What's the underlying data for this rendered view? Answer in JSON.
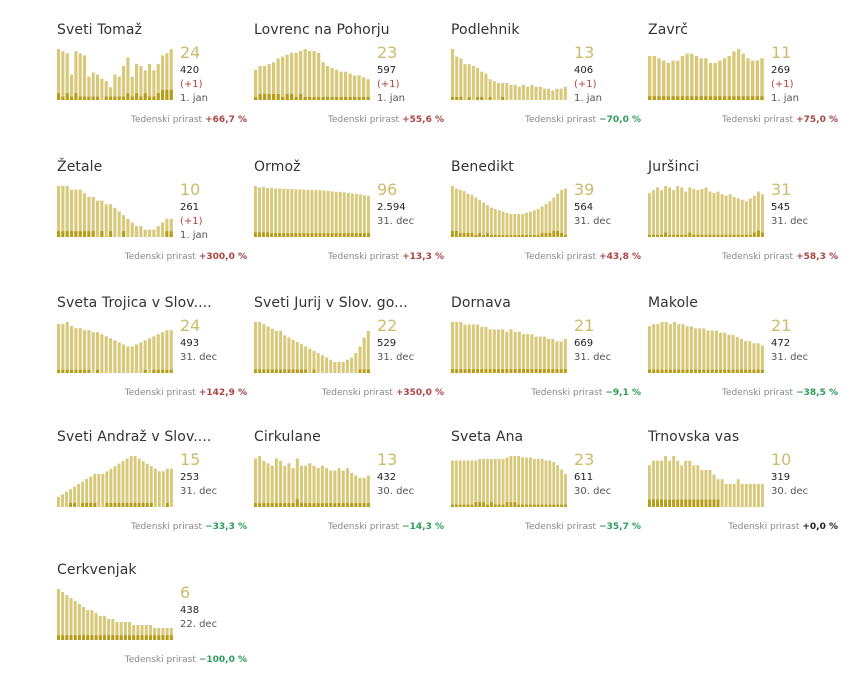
{
  "growth_label": "Tedenski prirast",
  "colors": {
    "accent": "#cdbb6c",
    "bar": "#d8c87a",
    "bar_dark": "#b69d19",
    "up": "#a94442",
    "down": "#2c9c5a"
  },
  "chart_data": [
    {
      "type": "bar",
      "name": "Sveti Tomaž",
      "active": "24",
      "total": "420",
      "delta": "(+1)",
      "date": "1. jan",
      "growth": "+66,7 %",
      "trend": "up",
      "values": [
        24,
        23,
        22,
        12,
        23,
        22,
        21,
        11,
        13,
        12,
        10,
        9,
        6,
        12,
        11,
        16,
        20,
        11,
        17,
        16,
        14,
        17,
        14,
        17,
        21,
        22,
        24
      ],
      "new_values": [
        2,
        1,
        2,
        1,
        2,
        1,
        1,
        1,
        1,
        1,
        0,
        1,
        1,
        1,
        1,
        1,
        2,
        1,
        2,
        1,
        2,
        1,
        1,
        2,
        3,
        3,
        3
      ]
    },
    {
      "type": "bar",
      "name": "Lovrenc na Pohorju",
      "active": "23",
      "total": "597",
      "delta": "(+1)",
      "date": "1. jan",
      "growth": "+55,6 %",
      "trend": "up",
      "values": [
        16,
        18,
        18,
        19,
        20,
        22,
        23,
        24,
        25,
        25,
        26,
        27,
        26,
        26,
        25,
        20,
        18,
        17,
        16,
        15,
        15,
        14,
        13,
        13,
        12,
        11
      ],
      "new_values": [
        1,
        2,
        2,
        2,
        2,
        2,
        1,
        2,
        2,
        1,
        2,
        1,
        1,
        1,
        1,
        1,
        1,
        1,
        1,
        1,
        1,
        1,
        1,
        1,
        1,
        1
      ]
    },
    {
      "type": "bar",
      "name": "Podlehnik",
      "active": "13",
      "total": "406",
      "delta": "(+1)",
      "date": "1. jan",
      "growth": "−70,0 %",
      "trend": "down",
      "values": [
        27,
        23,
        22,
        19,
        19,
        18,
        17,
        15,
        14,
        11,
        10,
        9,
        9,
        9,
        8,
        8,
        7,
        8,
        7,
        8,
        7,
        7,
        6,
        6,
        5,
        6,
        6,
        7
      ],
      "new_values": [
        1,
        1,
        1,
        0,
        1,
        0,
        1,
        1,
        0,
        1,
        0,
        0,
        1,
        0,
        0,
        0,
        0,
        0,
        0,
        0,
        0,
        0,
        0,
        0,
        0,
        0,
        0,
        0
      ]
    },
    {
      "type": "bar",
      "name": "Zavrč",
      "active": "11",
      "total": "269",
      "delta": "(+1)",
      "date": "1. jan",
      "growth": "+75,0 %",
      "trend": "up",
      "values": [
        19,
        19,
        18,
        17,
        16,
        17,
        17,
        19,
        20,
        20,
        19,
        18,
        18,
        16,
        16,
        17,
        18,
        19,
        21,
        22,
        20,
        18,
        17,
        17,
        18
      ],
      "new_values": [
        1,
        1,
        1,
        1,
        1,
        1,
        1,
        1,
        1,
        1,
        1,
        1,
        1,
        1,
        1,
        1,
        1,
        1,
        1,
        1,
        1,
        1,
        1,
        1,
        1
      ]
    },
    {
      "type": "bar",
      "name": "Žetale",
      "active": "10",
      "total": "261",
      "delta": "(+1)",
      "date": "1. jan",
      "growth": "+300,0 %",
      "trend": "up",
      "values": [
        14,
        14,
        14,
        13,
        13,
        13,
        12,
        11,
        11,
        10,
        10,
        9,
        9,
        8,
        7,
        6,
        5,
        4,
        3,
        3,
        2,
        2,
        2,
        3,
        4,
        5,
        5
      ],
      "new_values": [
        1,
        1,
        1,
        1,
        1,
        1,
        1,
        1,
        1,
        0,
        1,
        0,
        1,
        0,
        0,
        1,
        0,
        0,
        0,
        0,
        0,
        0,
        0,
        0,
        0,
        1,
        1
      ]
    },
    {
      "type": "bar",
      "name": "Ormož",
      "active": "96",
      "total": "2.594",
      "delta": "",
      "date": "31. dec",
      "growth": "+13,3 %",
      "trend": "up",
      "values": [
        105,
        102,
        103,
        101,
        101,
        100,
        100,
        99,
        99,
        99,
        98,
        98,
        98,
        97,
        97,
        97,
        96,
        96,
        95,
        94,
        93,
        93,
        92,
        91,
        90,
        89,
        88,
        86,
        85
      ],
      "new_values": [
        6,
        6,
        6,
        6,
        5,
        5,
        5,
        5,
        5,
        5,
        5,
        5,
        5,
        5,
        5,
        5,
        5,
        5,
        5,
        5,
        5,
        5,
        5,
        5,
        5,
        5,
        5,
        5,
        5
      ]
    },
    {
      "type": "bar",
      "name": "Benedikt",
      "active": "39",
      "total": "564",
      "delta": "",
      "date": "31. dec",
      "growth": "+43,8 %",
      "trend": "up",
      "values": [
        40,
        38,
        37,
        36,
        34,
        33,
        31,
        29,
        27,
        25,
        23,
        22,
        21,
        20,
        19,
        18,
        18,
        18,
        18,
        19,
        20,
        21,
        22,
        24,
        26,
        28,
        31,
        34,
        37,
        38
      ],
      "new_values": [
        3,
        3,
        2,
        2,
        2,
        2,
        1,
        2,
        1,
        2,
        1,
        1,
        1,
        1,
        1,
        1,
        1,
        1,
        1,
        1,
        1,
        1,
        1,
        2,
        2,
        2,
        3,
        3,
        2,
        1
      ]
    },
    {
      "type": "bar",
      "name": "Juršinci",
      "active": "31",
      "total": "545",
      "delta": "",
      "date": "31. dec",
      "growth": "+58,3 %",
      "trend": "up",
      "values": [
        32,
        34,
        36,
        34,
        37,
        36,
        34,
        37,
        36,
        33,
        36,
        35,
        34,
        35,
        36,
        33,
        32,
        33,
        31,
        30,
        31,
        29,
        28,
        27,
        26,
        28,
        30,
        33,
        31
      ],
      "new_values": [
        1,
        1,
        1,
        1,
        2,
        1,
        1,
        1,
        1,
        1,
        2,
        1,
        1,
        1,
        1,
        1,
        1,
        1,
        1,
        1,
        1,
        1,
        1,
        1,
        1,
        1,
        2,
        3,
        2
      ]
    },
    {
      "type": "bar",
      "name": "Sveta Trojica v Slov....",
      "active": "24",
      "total": "493",
      "delta": "",
      "date": "31. dec",
      "growth": "+142,9 %",
      "trend": "up",
      "values": [
        24,
        24,
        25,
        23,
        22,
        22,
        21,
        21,
        20,
        20,
        19,
        18,
        17,
        16,
        15,
        14,
        13,
        13,
        14,
        15,
        16,
        17,
        18,
        19,
        20,
        21,
        21
      ],
      "new_values": [
        1,
        1,
        1,
        1,
        1,
        1,
        1,
        1,
        0,
        1,
        0,
        0,
        0,
        0,
        0,
        0,
        0,
        0,
        0,
        0,
        1,
        0,
        1,
        1,
        1,
        1,
        1
      ]
    },
    {
      "type": "bar",
      "name": "Sveti Jurij v Slov. go...",
      "active": "22",
      "total": "529",
      "delta": "",
      "date": "31. dec",
      "growth": "+350,0 %",
      "trend": "up",
      "values": [
        23,
        23,
        22,
        21,
        20,
        19,
        19,
        17,
        16,
        15,
        14,
        13,
        12,
        11,
        10,
        9,
        8,
        7,
        6,
        5,
        5,
        5,
        6,
        7,
        9,
        12,
        16,
        19
      ],
      "new_values": [
        1,
        1,
        1,
        1,
        1,
        1,
        1,
        1,
        1,
        1,
        1,
        1,
        1,
        0,
        1,
        0,
        0,
        0,
        0,
        0,
        0,
        0,
        0,
        0,
        0,
        1,
        1,
        1
      ]
    },
    {
      "type": "bar",
      "name": "Dornava",
      "active": "21",
      "total": "669",
      "delta": "",
      "date": "31. dec",
      "growth": "−9,1 %",
      "trend": "down",
      "values": [
        21,
        21,
        21,
        20,
        20,
        20,
        20,
        19,
        19,
        18,
        18,
        18,
        18,
        17,
        18,
        17,
        17,
        16,
        16,
        16,
        15,
        15,
        15,
        14,
        14,
        13,
        13,
        14
      ],
      "new_values": [
        1,
        1,
        1,
        1,
        1,
        1,
        1,
        1,
        1,
        1,
        1,
        1,
        1,
        1,
        1,
        1,
        1,
        1,
        1,
        1,
        1,
        1,
        1,
        1,
        1,
        1,
        1,
        1
      ]
    },
    {
      "type": "bar",
      "name": "Makole",
      "active": "21",
      "total": "472",
      "delta": "",
      "date": "31. dec",
      "growth": "−38,5 %",
      "trend": "down",
      "values": [
        22,
        23,
        23,
        24,
        24,
        23,
        24,
        23,
        23,
        22,
        22,
        21,
        21,
        21,
        20,
        20,
        20,
        19,
        19,
        18,
        18,
        17,
        16,
        15,
        15,
        14,
        14,
        13
      ],
      "new_values": [
        1,
        1,
        1,
        1,
        1,
        1,
        1,
        1,
        1,
        1,
        1,
        1,
        1,
        1,
        1,
        1,
        1,
        1,
        1,
        1,
        1,
        1,
        1,
        1,
        1,
        1,
        1,
        1
      ]
    },
    {
      "type": "bar",
      "name": "Sveti Andraž v Slov....",
      "active": "15",
      "total": "253",
      "delta": "",
      "date": "31. dec",
      "growth": "−33,3 %",
      "trend": "down",
      "values": [
        4,
        5,
        6,
        7,
        8,
        9,
        10,
        11,
        12,
        13,
        13,
        13,
        14,
        15,
        16,
        17,
        18,
        19,
        20,
        20,
        19,
        18,
        17,
        16,
        15,
        14,
        14,
        15,
        15
      ],
      "new_values": [
        0,
        0,
        0,
        1,
        1,
        0,
        1,
        1,
        1,
        1,
        0,
        0,
        1,
        1,
        1,
        1,
        1,
        1,
        1,
        1,
        1,
        1,
        1,
        1,
        0,
        0,
        0,
        1,
        0
      ]
    },
    {
      "type": "bar",
      "name": "Cirkulane",
      "active": "13",
      "total": "432",
      "delta": "",
      "date": "30. dec",
      "growth": "−14,3 %",
      "trend": "down",
      "values": [
        20,
        21,
        19,
        18,
        17,
        20,
        19,
        17,
        18,
        16,
        20,
        17,
        17,
        18,
        17,
        16,
        17,
        16,
        15,
        15,
        16,
        15,
        16,
        14,
        13,
        12,
        12,
        13
      ],
      "new_values": [
        1,
        1,
        1,
        1,
        1,
        1,
        1,
        1,
        1,
        1,
        2,
        1,
        1,
        1,
        1,
        1,
        1,
        1,
        1,
        1,
        1,
        1,
        1,
        1,
        1,
        1,
        1,
        1
      ]
    },
    {
      "type": "bar",
      "name": "Sveta Ana",
      "active": "23",
      "total": "611",
      "delta": "",
      "date": "30. dec",
      "growth": "−35,7 %",
      "trend": "down",
      "values": [
        31,
        31,
        31,
        31,
        31,
        31,
        31,
        32,
        32,
        32,
        32,
        32,
        32,
        32,
        33,
        34,
        34,
        34,
        33,
        33,
        33,
        32,
        32,
        32,
        31,
        31,
        30,
        28,
        25,
        22
      ],
      "new_values": [
        1,
        1,
        1,
        1,
        1,
        1,
        2,
        2,
        2,
        1,
        2,
        1,
        1,
        1,
        2,
        2,
        2,
        1,
        1,
        1,
        1,
        1,
        1,
        1,
        1,
        1,
        1,
        1,
        1,
        1
      ]
    },
    {
      "type": "bar",
      "name": "Trnovska vas",
      "active": "10",
      "total": "319",
      "delta": "",
      "date": "30. dec",
      "growth": "+0,0 %",
      "trend": "zero",
      "values": [
        9,
        10,
        10,
        10,
        11,
        10,
        11,
        10,
        9,
        10,
        10,
        9,
        9,
        8,
        8,
        8,
        7,
        6,
        6,
        5,
        5,
        5,
        6,
        5,
        5,
        5,
        5,
        5,
        5
      ],
      "new_values": [
        1,
        1,
        1,
        1,
        1,
        1,
        1,
        1,
        1,
        1,
        1,
        1,
        1,
        1,
        1,
        1,
        1,
        1,
        0,
        0,
        0,
        0,
        0,
        0,
        0,
        0,
        0,
        0,
        0
      ]
    },
    {
      "type": "bar",
      "name": "Cerkvenjak",
      "active": "6",
      "total": "438",
      "delta": "",
      "date": "22. dec",
      "growth": "−100,0 %",
      "trend": "down",
      "values": [
        17,
        16,
        15,
        14,
        13,
        12,
        11,
        10,
        10,
        9,
        8,
        8,
        7,
        7,
        6,
        6,
        6,
        6,
        5,
        5,
        5,
        5,
        5,
        4,
        4,
        4,
        4,
        4
      ],
      "new_values": [
        1,
        1,
        1,
        1,
        1,
        1,
        1,
        1,
        1,
        1,
        1,
        1,
        1,
        1,
        1,
        1,
        1,
        1,
        1,
        1,
        1,
        1,
        1,
        1,
        1,
        1,
        1,
        1
      ]
    }
  ]
}
